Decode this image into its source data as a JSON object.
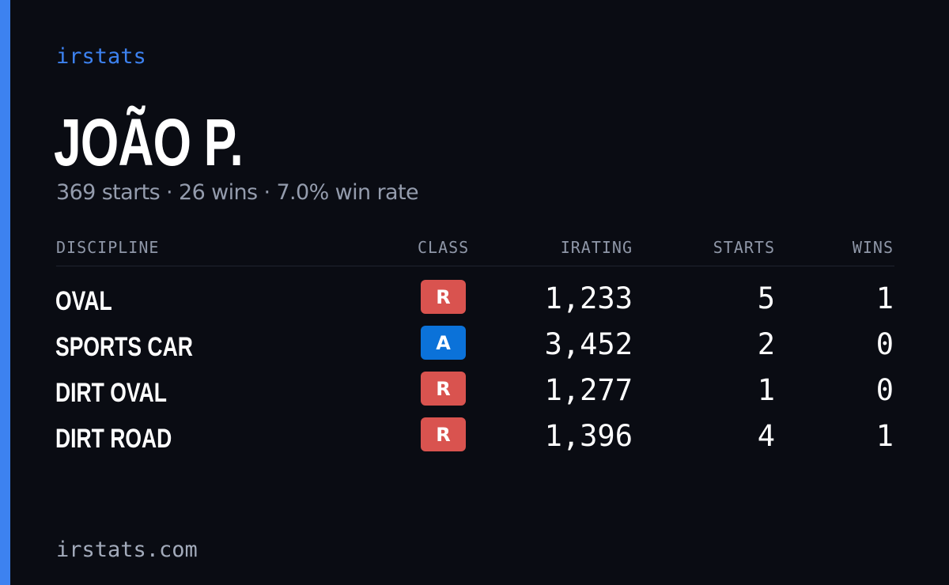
{
  "brand": "irstats",
  "driver_name": "JOÃO P.",
  "summary": "369 starts · 26 wins · 7.0% win rate",
  "columns": {
    "discipline": "DISCIPLINE",
    "class": "CLASS",
    "irating": "IRATING",
    "starts": "STARTS",
    "wins": "WINS"
  },
  "rows": [
    {
      "discipline": "OVAL",
      "class": "R",
      "irating": "1,233",
      "starts": "5",
      "wins": "1"
    },
    {
      "discipline": "SPORTS CAR",
      "class": "A",
      "irating": "3,452",
      "starts": "2",
      "wins": "0"
    },
    {
      "discipline": "DIRT OVAL",
      "class": "R",
      "irating": "1,277",
      "starts": "1",
      "wins": "0"
    },
    {
      "discipline": "DIRT ROAD",
      "class": "R",
      "irating": "1,396",
      "starts": "4",
      "wins": "1"
    }
  ],
  "class_colors": {
    "R": "#d9534f",
    "A": "#0b72d9"
  },
  "accent_color": "#3d82f0",
  "footer": "irstats.com"
}
